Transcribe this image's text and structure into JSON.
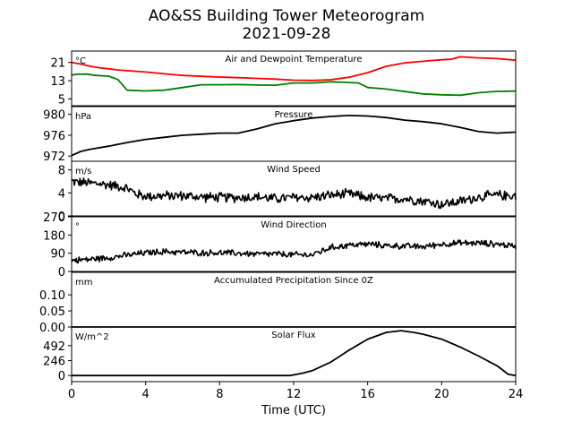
{
  "title": "AO&SS Building Tower Meteorogram",
  "subtitle": "2021-09-28",
  "colors": {
    "air_temp": "#ff0000",
    "dewpoint": "#008000",
    "black": "#000000"
  },
  "chart_data": {
    "type": "line",
    "xlabel": "Time (UTC)",
    "xlim": [
      0,
      24
    ],
    "xticks": [
      0,
      4,
      8,
      12,
      16,
      20,
      24
    ],
    "panels": [
      {
        "id": "temperature",
        "label": "Air and Dewpoint Temperature",
        "unit": "°C",
        "ylim": [
          2,
          26
        ],
        "yticks": [
          5,
          13,
          21
        ],
        "series": [
          {
            "key": "air",
            "color": "#ff0000",
            "x": [
              0,
              0.5,
              1,
              1.5,
              2,
              2.5,
              3,
              4,
              5,
              6,
              7,
              8,
              9,
              10,
              11,
              12,
              13,
              14,
              15,
              16,
              17,
              18,
              19,
              20,
              20.5,
              21,
              22,
              23,
              24
            ],
            "values": [
              21,
              20.3,
              19.3,
              18.7,
              18.2,
              17.7,
              17.4,
              16.8,
              16,
              15.3,
              14.9,
              14.6,
              14.3,
              14,
              13.7,
              13.2,
              13.1,
              13.4,
              14.5,
              16.5,
              19.3,
              20.8,
              21.5,
              22.2,
              22.4,
              23.5,
              23,
              22.7,
              22
            ]
          },
          {
            "key": "dew",
            "color": "#008000",
            "x": [
              0,
              0.3,
              0.8,
              1.3,
              2,
              2.5,
              3,
              4,
              5,
              6,
              7,
              8,
              9,
              10,
              11,
              12,
              13,
              14,
              15,
              15.5,
              16,
              17,
              18,
              19,
              20,
              21,
              22,
              23,
              24
            ],
            "values": [
              15.5,
              15.8,
              15.9,
              15.3,
              15,
              13.5,
              8.8,
              8.5,
              8.8,
              10,
              11.2,
              11.2,
              11.3,
              11.1,
              11,
              12,
              12,
              12.5,
              12.2,
              12,
              10,
              9.3,
              8.2,
              7.2,
              6.8,
              6.6,
              7.7,
              8.3,
              8.4
            ]
          }
        ]
      },
      {
        "id": "pressure",
        "label": "Pressure",
        "unit": "hPa",
        "ylim": [
          971,
          981.5
        ],
        "yticks": [
          972,
          976,
          980
        ],
        "series": [
          {
            "key": "pres",
            "color": "#000000",
            "x": [
              0,
              0.5,
              1,
              2,
              3,
              4,
              5,
              6,
              7,
              8,
              9,
              10,
              11,
              12,
              13,
              14,
              15,
              16,
              17,
              18,
              19,
              20,
              21,
              22,
              23,
              24
            ],
            "values": [
              972.1,
              972.9,
              973.3,
              973.9,
              974.6,
              975.2,
              975.6,
              976.0,
              976.2,
              976.4,
              976.4,
              977.2,
              978.2,
              978.8,
              979.3,
              979.6,
              979.8,
              979.7,
              979.4,
              978.9,
              978.6,
              978.2,
              977.5,
              976.7,
              976.4,
              976.6
            ]
          }
        ]
      },
      {
        "id": "wind_speed",
        "label": "Wind Speed",
        "unit": "m/s",
        "ylim": [
          0,
          9.5
        ],
        "yticks": [
          0,
          4,
          8
        ],
        "series": [
          {
            "key": "ws",
            "color": "#000000",
            "x": [
              0,
              0.5,
              1,
              1.5,
              2,
              2.5,
              3,
              3.5,
              4,
              5,
              6,
              7,
              8,
              9,
              10,
              11,
              12,
              13,
              14,
              15,
              16,
              17,
              18,
              19,
              20,
              21,
              22,
              23,
              24
            ],
            "values": [
              6.0,
              5.8,
              5.7,
              5.6,
              5.4,
              5.2,
              4.8,
              3.8,
              3.4,
              3.5,
              3.5,
              3.3,
              3.2,
              3.2,
              3.3,
              3.0,
              3.2,
              3.2,
              3.6,
              3.8,
              3.2,
              3.0,
              3.0,
              2.6,
              2.0,
              2.5,
              3.3,
              3.6,
              3.5
            ],
            "noise": 1.0
          }
        ]
      },
      {
        "id": "wind_dir",
        "label": "Wind Direction",
        "unit": "°",
        "ylim": [
          0,
          270
        ],
        "yticks": [
          0,
          90,
          180,
          270
        ],
        "series": [
          {
            "key": "wd",
            "color": "#000000",
            "x": [
              0,
              1,
              2,
              3,
              4,
              5,
              6,
              7,
              8,
              9,
              10,
              11,
              12,
              13,
              14,
              15,
              16,
              17,
              18,
              19,
              20,
              21,
              22,
              23,
              24
            ],
            "values": [
              55,
              60,
              68,
              80,
              92,
              98,
              95,
              92,
              92,
              90,
              85,
              86,
              82,
              82,
              118,
              130,
              135,
              128,
              125,
              122,
              135,
              140,
              140,
              135,
              125
            ],
            "noise": 18
          }
        ]
      },
      {
        "id": "precip",
        "label": "Accumulated Precipitation Since 0Z",
        "unit": "mm",
        "ylim": [
          0,
          0.17
        ],
        "yticks": [
          0.0,
          0.05,
          0.1
        ],
        "ytick_labels": [
          "0.00",
          "0.05",
          "0.10"
        ],
        "series": [
          {
            "key": "pr",
            "color": "#000000",
            "x": [
              0,
              24
            ],
            "values": [
              0,
              0
            ]
          }
        ]
      },
      {
        "id": "solar",
        "label": "Solar Flux",
        "unit": "W/m^2",
        "ylim": [
          -100,
          800
        ],
        "yticks": [
          0,
          246,
          492
        ],
        "series": [
          {
            "key": "sf",
            "color": "#000000",
            "x": [
              0,
              11.8,
              12.5,
              13,
              14,
              15,
              16,
              17,
              17.8,
              18.5,
              19,
              20,
              21,
              22,
              23,
              23.6,
              24
            ],
            "values": [
              0,
              0,
              40,
              80,
              220,
              420,
              600,
              710,
              740,
              710,
              680,
              600,
              470,
              320,
              160,
              20,
              0
            ]
          }
        ]
      }
    ]
  }
}
